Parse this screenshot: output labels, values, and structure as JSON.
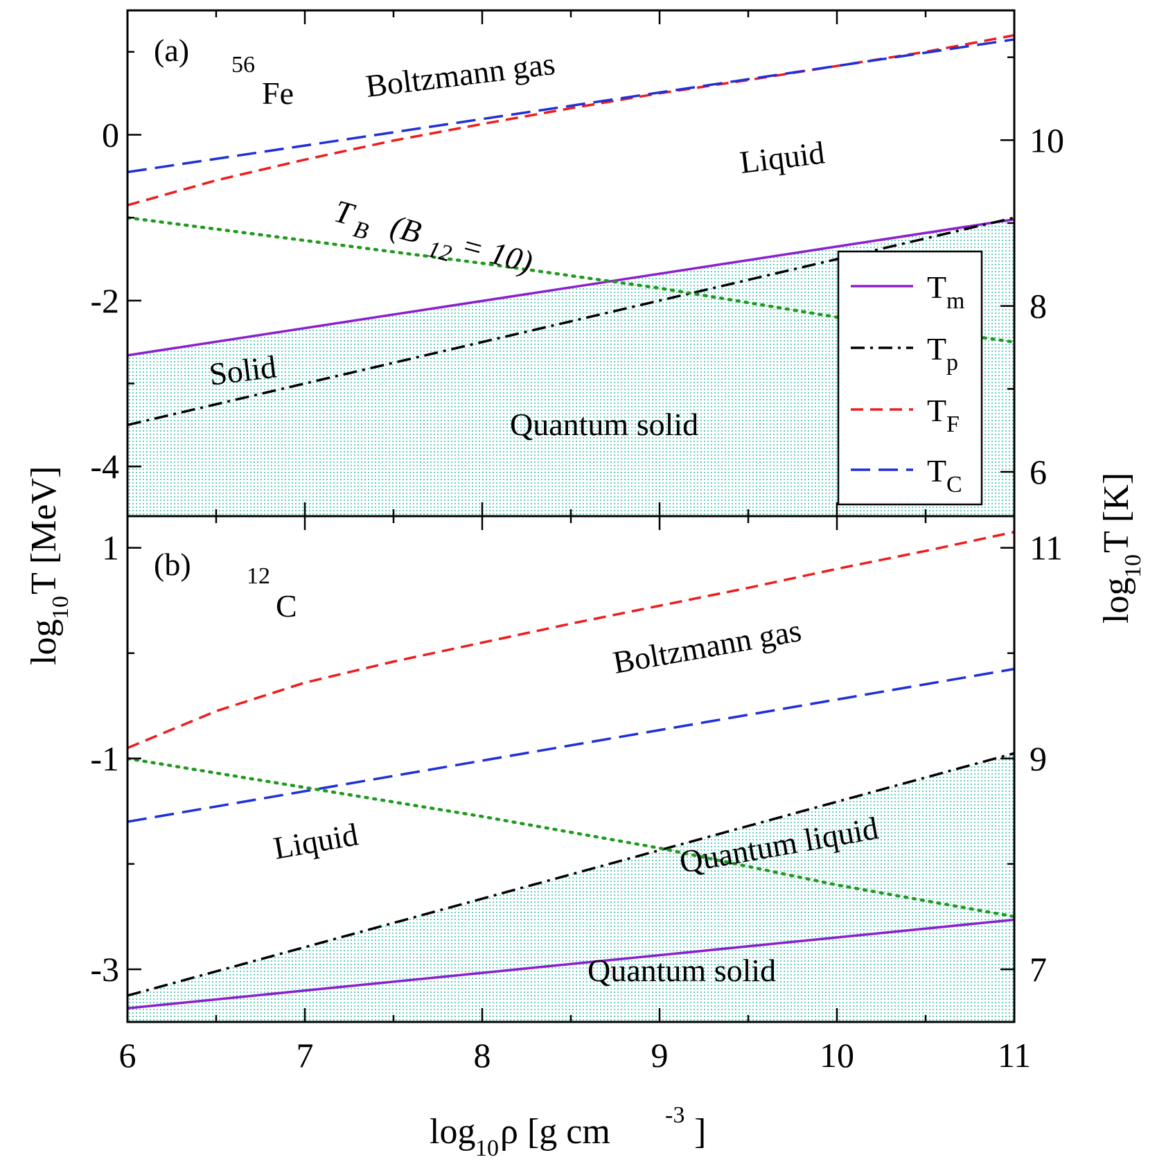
{
  "chart_data": [
    {
      "type": "line",
      "panel": "(a)",
      "nucleus": {
        "mass": "56",
        "symbol": "Fe"
      },
      "xlim": [
        6,
        11
      ],
      "ylim": [
        -4.6,
        1.5
      ],
      "right_axis": {
        "offset": 10.065,
        "ticks": [
          6,
          8,
          10
        ]
      },
      "yticks": [
        0,
        -2,
        -4
      ],
      "ytick_labels": [
        "0",
        "-2",
        "-4"
      ],
      "series": [
        {
          "name": "T_m",
          "label": "T",
          "sub": "m",
          "color": "#8b1fce",
          "style": "solid",
          "points": [
            [
              6,
              -2.66
            ],
            [
              11,
              -1.02
            ]
          ]
        },
        {
          "name": "T_p",
          "label": "T",
          "sub": "p",
          "color": "#000000",
          "style": "dashdot",
          "points": [
            [
              6,
              -3.5
            ],
            [
              11,
              -1.0
            ]
          ]
        },
        {
          "name": "T_F",
          "label": "T",
          "sub": "F",
          "color": "#ee1c1c",
          "style": "dashed",
          "points": [
            [
              6,
              -0.85
            ],
            [
              6.5,
              -0.55
            ],
            [
              7,
              -0.3
            ],
            [
              7.5,
              -0.07
            ],
            [
              8,
              0.13
            ],
            [
              8.5,
              0.32
            ],
            [
              9,
              0.5
            ],
            [
              9.5,
              0.66
            ],
            [
              10,
              0.83
            ],
            [
              10.5,
              1.0
            ],
            [
              11,
              1.2
            ]
          ]
        },
        {
          "name": "T_C",
          "label": "T",
          "sub": "C",
          "color": "#1f2fd8",
          "style": "longdash",
          "points": [
            [
              6,
              -0.45
            ],
            [
              11,
              1.15
            ]
          ]
        },
        {
          "name": "T_B",
          "label": "",
          "sub": "",
          "color": "#1e9a1e",
          "style": "dotted",
          "points": [
            [
              6,
              -1.0
            ],
            [
              8,
              -1.55
            ],
            [
              9,
              -1.85
            ],
            [
              10,
              -2.2
            ],
            [
              11,
              -2.5
            ]
          ]
        }
      ],
      "annotations": {
        "boltzmann": "Boltzmann gas",
        "liquid": "Liquid",
        "solid": "Solid",
        "quantum_solid": "Quantum solid",
        "tb_T": "T",
        "tb_B": "B",
        "tb_mid": "(B",
        "tb_12": "12",
        "tb_end": "= 10)"
      }
    },
    {
      "type": "line",
      "panel": "(b)",
      "nucleus": {
        "mass": "12",
        "symbol": "C"
      },
      "xlim": [
        6,
        11
      ],
      "ylim": [
        -3.5,
        1.3
      ],
      "right_axis": {
        "offset": 10.0,
        "ticks": [
          7,
          9,
          11
        ]
      },
      "yticks": [
        1,
        -1,
        -3
      ],
      "ytick_labels": [
        "1",
        "-1",
        "-3"
      ],
      "series": [
        {
          "name": "T_m",
          "color": "#8b1fce",
          "style": "solid",
          "points": [
            [
              6,
              -3.37
            ],
            [
              11,
              -2.53
            ]
          ]
        },
        {
          "name": "T_p",
          "color": "#000000",
          "style": "dashdot",
          "points": [
            [
              6,
              -3.25
            ],
            [
              11,
              -0.95
            ]
          ]
        },
        {
          "name": "T_F",
          "color": "#ee1c1c",
          "style": "dashed",
          "points": [
            [
              6,
              -0.9
            ],
            [
              6.5,
              -0.55
            ],
            [
              7,
              -0.28
            ],
            [
              7.5,
              -0.08
            ],
            [
              8,
              0.1
            ],
            [
              8.5,
              0.28
            ],
            [
              9,
              0.45
            ],
            [
              9.5,
              0.62
            ],
            [
              10,
              0.8
            ],
            [
              10.5,
              0.97
            ],
            [
              11,
              1.15
            ]
          ]
        },
        {
          "name": "T_C",
          "color": "#1f2fd8",
          "style": "longdash",
          "points": [
            [
              6,
              -1.6
            ],
            [
              11,
              -0.15
            ]
          ]
        },
        {
          "name": "T_B",
          "color": "#1e9a1e",
          "style": "dotted",
          "points": [
            [
              6,
              -1.0
            ],
            [
              8,
              -1.55
            ],
            [
              9,
              -1.85
            ],
            [
              10,
              -2.2
            ],
            [
              11,
              -2.5
            ]
          ]
        }
      ],
      "annotations": {
        "boltzmann": "Boltzmann gas",
        "liquid": "Liquid",
        "quantum_liquid": "Quantum liquid",
        "quantum_solid": "Quantum solid"
      }
    }
  ],
  "xticks": [
    6,
    7,
    8,
    9,
    10,
    11
  ],
  "xtick_labels": [
    "6",
    "7",
    "8",
    "9",
    "10",
    "11"
  ],
  "axis_titles": {
    "x_main": "log",
    "x_sub": "10",
    "x_rest": " ρ [g cm",
    "x_sup": "-3",
    "x_end": "]",
    "y_left_main": "log",
    "y_left_sub": "10",
    "y_left_rest": " T [MeV]",
    "y_right_main": "log",
    "y_right_sub": "10",
    "y_right_rest": " T [K]"
  },
  "shade_color": "#5fcfc0",
  "legend": [
    {
      "label": "T",
      "sub": "m"
    },
    {
      "label": "T",
      "sub": "p"
    },
    {
      "label": "T",
      "sub": "F"
    },
    {
      "label": "T",
      "sub": "C"
    }
  ]
}
